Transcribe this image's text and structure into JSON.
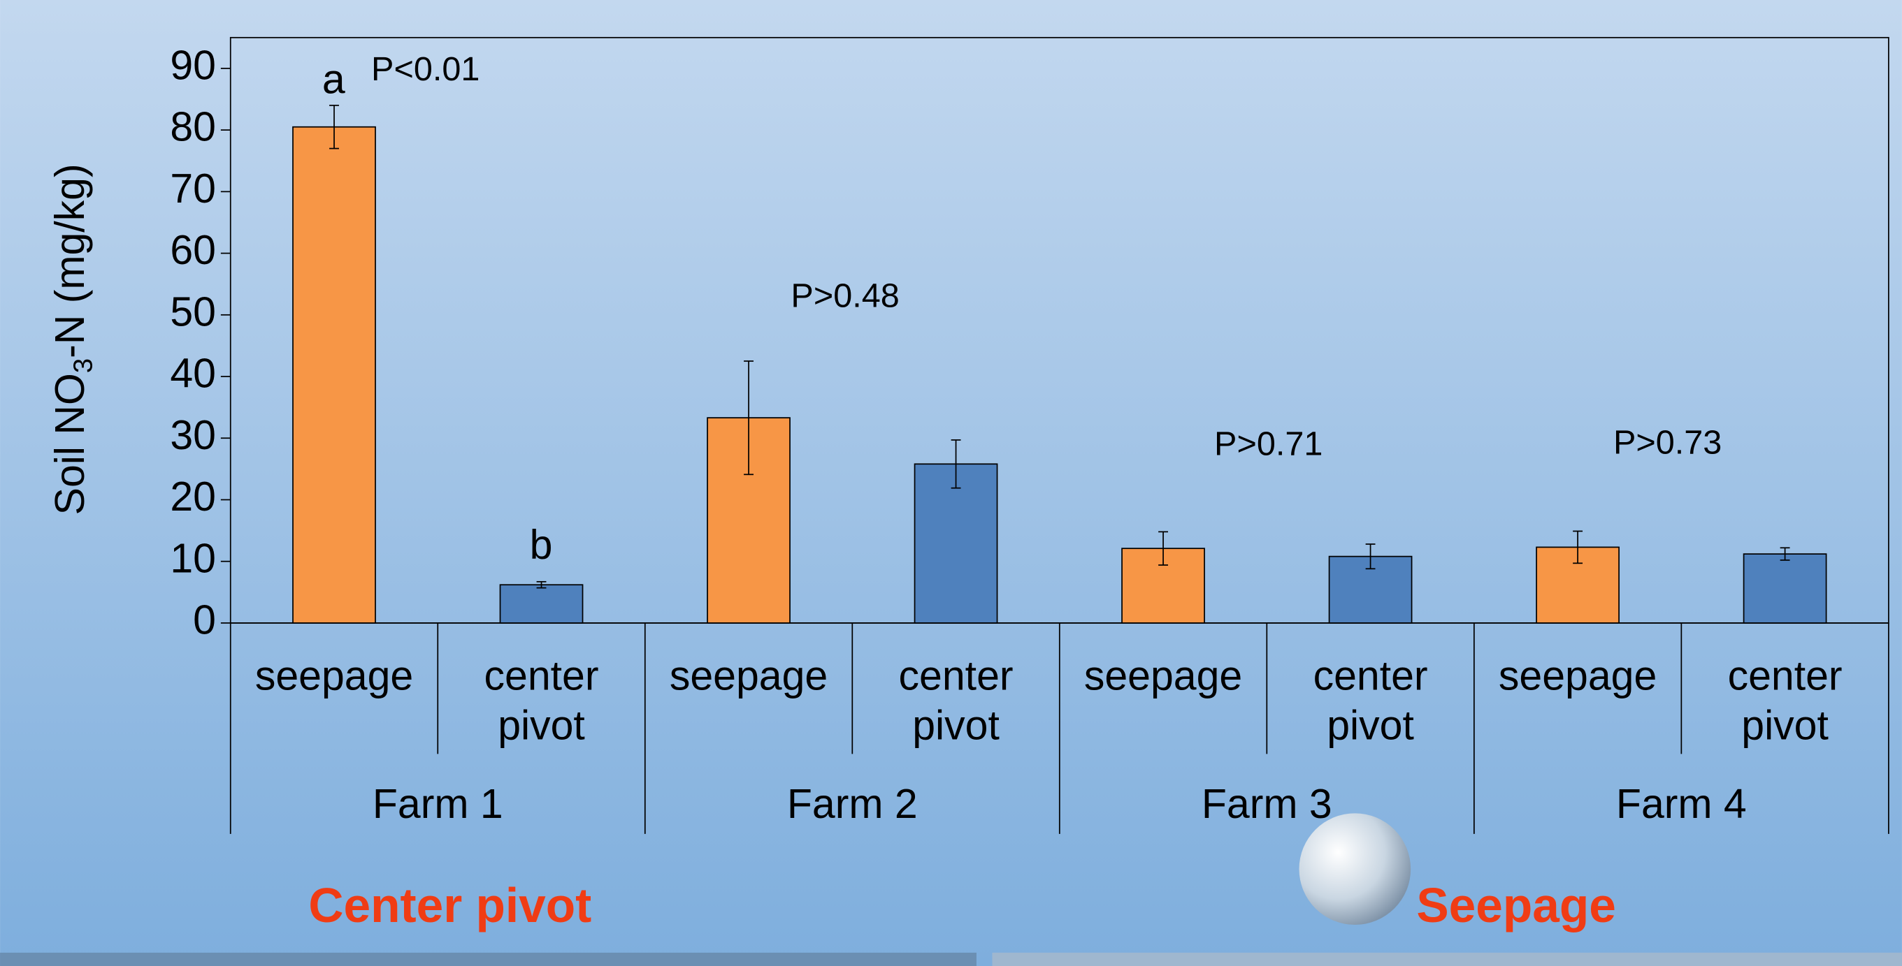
{
  "chart_data": {
    "type": "bar",
    "y_label": [
      "Soil NO",
      "3",
      "-N (mg/kg)"
    ],
    "categories": [
      "seepage",
      "center pivot",
      "seepage",
      "center pivot",
      "seepage",
      "center pivot",
      "seepage",
      "center pivot"
    ],
    "groups": [
      "Farm 1",
      "Farm 2",
      "Farm 3",
      "Farm 4"
    ],
    "values": [
      80.5,
      6.2,
      33.3,
      25.8,
      12.1,
      10.8,
      12.3,
      11.2
    ],
    "errors": [
      3.5,
      0.5,
      9.2,
      3.9,
      2.7,
      2.0,
      2.6,
      1.0
    ],
    "colors": [
      "#f79646",
      "#4f81bd",
      "#f79646",
      "#4f81bd",
      "#f79646",
      "#4f81bd",
      "#f79646",
      "#4f81bd"
    ],
    "ylim": [
      0,
      95
    ],
    "yticks": [
      0,
      10,
      20,
      30,
      40,
      50,
      60,
      70,
      80,
      90
    ],
    "annotations": [
      "a",
      "P<0.01",
      "b",
      "P>0.48",
      "P>0.71",
      "P>0.73"
    ],
    "captions": [
      "Center pivot",
      "Seepage"
    ]
  }
}
